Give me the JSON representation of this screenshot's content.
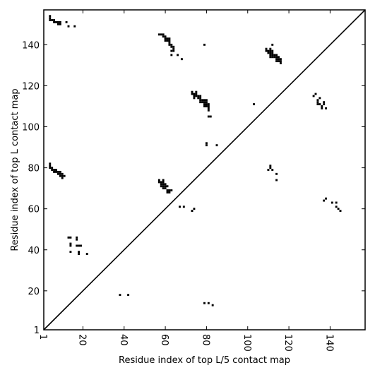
{
  "chart_data": {
    "type": "heatmap",
    "subtype": "contact-map-comparison",
    "xlabel": "Residue index of top L/5 contact map",
    "ylabel": "Residue index of top L contact map",
    "xlim": [
      1,
      157
    ],
    "ylim": [
      1,
      157
    ],
    "x_ticks": [
      1,
      20,
      40,
      60,
      80,
      100,
      120,
      140
    ],
    "y_ticks": [
      1,
      20,
      40,
      60,
      80,
      100,
      120,
      140
    ],
    "x_tick_labels": [
      "1",
      "20",
      "40",
      "60",
      "80",
      "100",
      "120",
      "140"
    ],
    "y_tick_labels": [
      "1",
      "20",
      "40",
      "60",
      "80",
      "100",
      "120",
      "140"
    ],
    "diagonal": true,
    "mark_color": "#000000",
    "contacts": [
      [
        4,
        154
      ],
      [
        4,
        153
      ],
      [
        4,
        152
      ],
      [
        5,
        152
      ],
      [
        6,
        152
      ],
      [
        6,
        151
      ],
      [
        7,
        151
      ],
      [
        8,
        151
      ],
      [
        8,
        150
      ],
      [
        9,
        151
      ],
      [
        9,
        150
      ],
      [
        12,
        151
      ],
      [
        13,
        149
      ],
      [
        16,
        149
      ],
      [
        4,
        82
      ],
      [
        4,
        81
      ],
      [
        4,
        80
      ],
      [
        5,
        80
      ],
      [
        5,
        79
      ],
      [
        6,
        79
      ],
      [
        6,
        78
      ],
      [
        7,
        79
      ],
      [
        7,
        78
      ],
      [
        8,
        78
      ],
      [
        8,
        77
      ],
      [
        9,
        78
      ],
      [
        9,
        77
      ],
      [
        9,
        76
      ],
      [
        10,
        77
      ],
      [
        10,
        76
      ],
      [
        10,
        75
      ],
      [
        11,
        76
      ],
      [
        13,
        46
      ],
      [
        14,
        46
      ],
      [
        14,
        43
      ],
      [
        14,
        42
      ],
      [
        14,
        39
      ],
      [
        17,
        46
      ],
      [
        17,
        45
      ],
      [
        17,
        42
      ],
      [
        18,
        42
      ],
      [
        18,
        39
      ],
      [
        18,
        38
      ],
      [
        19,
        42
      ],
      [
        22,
        38
      ],
      [
        38,
        18
      ],
      [
        42,
        18
      ],
      [
        79,
        14
      ],
      [
        81,
        14
      ],
      [
        83,
        13
      ],
      [
        57,
        145
      ],
      [
        58,
        145
      ],
      [
        59,
        145
      ],
      [
        59,
        144
      ],
      [
        60,
        144
      ],
      [
        60,
        143
      ],
      [
        60,
        142
      ],
      [
        61,
        143
      ],
      [
        61,
        142
      ],
      [
        62,
        143
      ],
      [
        62,
        142
      ],
      [
        62,
        141
      ],
      [
        62,
        140
      ],
      [
        63,
        140
      ],
      [
        63,
        139
      ],
      [
        64,
        139
      ],
      [
        64,
        138
      ],
      [
        64,
        137
      ],
      [
        63,
        137
      ],
      [
        63,
        135
      ],
      [
        66,
        135
      ],
      [
        68,
        133
      ],
      [
        79,
        140
      ],
      [
        57,
        74
      ],
      [
        57,
        73
      ],
      [
        58,
        73
      ],
      [
        58,
        72
      ],
      [
        58,
        71
      ],
      [
        59,
        74
      ],
      [
        59,
        73
      ],
      [
        59,
        72
      ],
      [
        59,
        71
      ],
      [
        59,
        70
      ],
      [
        60,
        72
      ],
      [
        60,
        71
      ],
      [
        60,
        70
      ],
      [
        61,
        71
      ],
      [
        61,
        69
      ],
      [
        61,
        68
      ],
      [
        62,
        69
      ],
      [
        62,
        68
      ],
      [
        63,
        69
      ],
      [
        67,
        61
      ],
      [
        69,
        61
      ],
      [
        73,
        59
      ],
      [
        74,
        60
      ],
      [
        73,
        117
      ],
      [
        73,
        116
      ],
      [
        74,
        116
      ],
      [
        74,
        115
      ],
      [
        74,
        114
      ],
      [
        75,
        117
      ],
      [
        75,
        116
      ],
      [
        75,
        115
      ],
      [
        76,
        115
      ],
      [
        76,
        114
      ],
      [
        77,
        115
      ],
      [
        77,
        114
      ],
      [
        77,
        113
      ],
      [
        77,
        112
      ],
      [
        78,
        113
      ],
      [
        78,
        112
      ],
      [
        79,
        113
      ],
      [
        79,
        112
      ],
      [
        79,
        111
      ],
      [
        79,
        110
      ],
      [
        80,
        113
      ],
      [
        80,
        112
      ],
      [
        80,
        111
      ],
      [
        80,
        110
      ],
      [
        81,
        111
      ],
      [
        81,
        110
      ],
      [
        81,
        109
      ],
      [
        81,
        108
      ],
      [
        81,
        105
      ],
      [
        82,
        105
      ],
      [
        103,
        111
      ],
      [
        80,
        92
      ],
      [
        80,
        91
      ],
      [
        85,
        91
      ],
      [
        109,
        138
      ],
      [
        109,
        137
      ],
      [
        110,
        137
      ],
      [
        110,
        136
      ],
      [
        111,
        138
      ],
      [
        111,
        137
      ],
      [
        111,
        136
      ],
      [
        111,
        135
      ],
      [
        111,
        134
      ],
      [
        112,
        137
      ],
      [
        112,
        136
      ],
      [
        112,
        135
      ],
      [
        112,
        134
      ],
      [
        112,
        140
      ],
      [
        113,
        135
      ],
      [
        113,
        134
      ],
      [
        114,
        135
      ],
      [
        114,
        134
      ],
      [
        114,
        133
      ],
      [
        114,
        132
      ],
      [
        115,
        134
      ],
      [
        115,
        133
      ],
      [
        115,
        132
      ],
      [
        116,
        133
      ],
      [
        116,
        132
      ],
      [
        116,
        131
      ],
      [
        110,
        79
      ],
      [
        111,
        81
      ],
      [
        111,
        80
      ],
      [
        112,
        79
      ],
      [
        114,
        77
      ],
      [
        114,
        74
      ],
      [
        132,
        115
      ],
      [
        133,
        116
      ],
      [
        134,
        113
      ],
      [
        134,
        112
      ],
      [
        134,
        111
      ],
      [
        135,
        114
      ],
      [
        135,
        111
      ],
      [
        136,
        110
      ],
      [
        136,
        109
      ],
      [
        137,
        112
      ],
      [
        137,
        111
      ],
      [
        138,
        109
      ],
      [
        137,
        64
      ],
      [
        138,
        65
      ],
      [
        141,
        63
      ],
      [
        143,
        63
      ],
      [
        143,
        61
      ],
      [
        144,
        60
      ],
      [
        145,
        59
      ]
    ]
  }
}
